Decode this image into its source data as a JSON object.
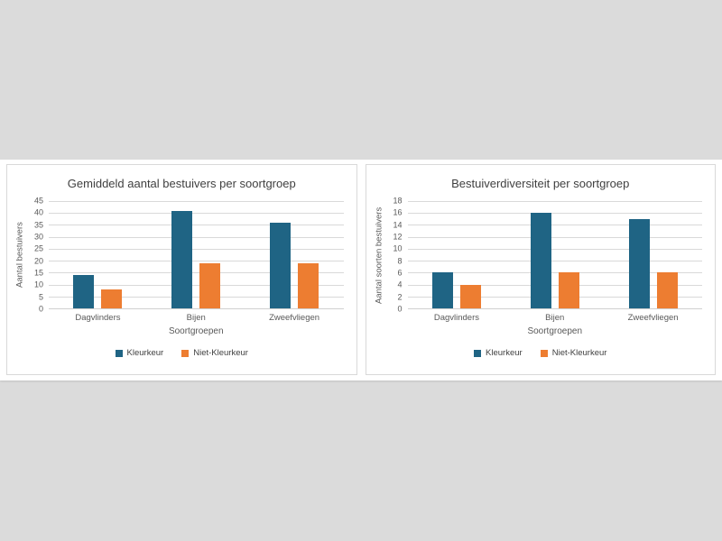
{
  "page": {
    "background_color": "#DBDBDB",
    "band_color": "#FFFFFF",
    "panel_border_color": "#D9D9D9",
    "gridline_color": "#D9D9D9",
    "text_title_color": "#3F3F3F",
    "text_label_color": "#595959"
  },
  "series_colors": {
    "kleurkeur": "#1F6484",
    "niet_kleurkeur": "#ED7D31"
  },
  "chart_data": [
    {
      "type": "bar",
      "title": "Gemiddeld aantal bestuivers per soortgroep",
      "categories": [
        "Dagvlinders",
        "Bijen",
        "Zweefvliegen"
      ],
      "series": [
        {
          "name": "Kleurkeur",
          "color": "#1F6484",
          "values": [
            14,
            41,
            36
          ]
        },
        {
          "name": "Niet-Kleurkeur",
          "color": "#ED7D31",
          "values": [
            8,
            19,
            19
          ]
        }
      ],
      "xlabel": "Soortgroepen",
      "ylabel": "Aantal bestuivers",
      "ylim": [
        0,
        45
      ],
      "ytick_step": 5,
      "yticks": [
        0,
        5,
        10,
        15,
        20,
        25,
        30,
        35,
        40,
        45
      ],
      "grid": true,
      "legend_position": "bottom"
    },
    {
      "type": "bar",
      "title": "Bestuiverdiversiteit per soortgroep",
      "categories": [
        "Dagvlinders",
        "Bijen",
        "Zweefvliegen"
      ],
      "series": [
        {
          "name": "Kleurkeur",
          "color": "#1F6484",
          "values": [
            6,
            16,
            15
          ]
        },
        {
          "name": "Niet-Kleurkeur",
          "color": "#ED7D31",
          "values": [
            4,
            6,
            6
          ]
        }
      ],
      "xlabel": "Soortgroepen",
      "ylabel": "Aantal soorten bestuivers",
      "ylim": [
        0,
        18
      ],
      "ytick_step": 2,
      "yticks": [
        0,
        2,
        4,
        6,
        8,
        10,
        12,
        14,
        16,
        18
      ],
      "grid": true,
      "legend_position": "bottom"
    }
  ]
}
